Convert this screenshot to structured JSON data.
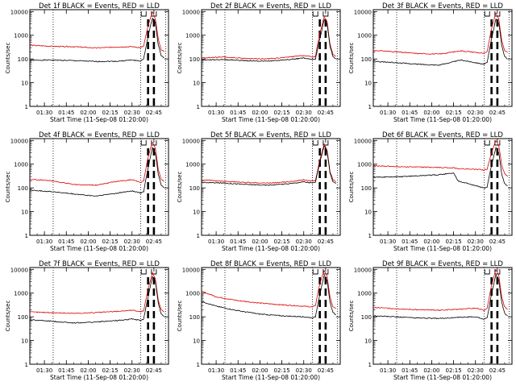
{
  "figure": {
    "ylabel": "Counts/sec",
    "xlabel": "Start Time (11-Sep-08 01:20:00)",
    "xticks": [
      "01:30",
      "01:45",
      "02:00",
      "02:15",
      "02:30",
      "02:45"
    ],
    "yticks": [
      "1",
      "10",
      "100",
      "1000",
      "10000"
    ],
    "colors": {
      "events": "#000000",
      "lld": "#dd0000",
      "background": "#ffffff"
    }
  },
  "chart_data": [
    {
      "type": "line",
      "title": "Det 1f BLACK = Events, RED = LLD",
      "xlim": [
        "01:20",
        "02:55"
      ],
      "ylim": [
        1,
        12000
      ],
      "yscale": "log",
      "series": [
        {
          "name": "Events",
          "x": [
            "01:20",
            "01:35",
            "01:50",
            "02:05",
            "02:20",
            "02:30",
            "02:36",
            "02:38",
            "02:41",
            "02:44",
            "02:46",
            "02:48",
            "02:50",
            "02:52"
          ],
          "values": [
            88,
            90,
            85,
            78,
            80,
            90,
            82,
            100,
            900,
            5500,
            3500,
            400,
            140,
            110
          ]
        },
        {
          "name": "LLD",
          "x": [
            "01:20",
            "01:35",
            "01:50",
            "02:05",
            "02:20",
            "02:30",
            "02:36",
            "02:38",
            "02:41",
            "02:44",
            "02:46",
            "02:48",
            "02:50",
            "02:52"
          ],
          "values": [
            380,
            340,
            330,
            290,
            320,
            330,
            300,
            350,
            2500,
            9500,
            5000,
            700,
            250,
            200
          ]
        }
      ]
    },
    {
      "type": "line",
      "title": "Det 2f BLACK = Events, RED = LLD",
      "xlim": [
        "01:20",
        "02:55"
      ],
      "ylim": [
        1,
        12000
      ],
      "yscale": "log",
      "series": [
        {
          "name": "Events",
          "x": [
            "01:20",
            "01:35",
            "01:50",
            "02:05",
            "02:20",
            "02:30",
            "02:36",
            "02:38",
            "02:41",
            "02:44",
            "02:46",
            "02:48",
            "02:50",
            "02:52"
          ],
          "values": [
            90,
            95,
            85,
            80,
            95,
            110,
            95,
            100,
            700,
            4500,
            3000,
            350,
            130,
            100
          ]
        },
        {
          "name": "LLD",
          "x": [
            "01:20",
            "01:35",
            "01:50",
            "02:05",
            "02:20",
            "02:30",
            "02:36",
            "02:38",
            "02:41",
            "02:44",
            "02:46",
            "02:48",
            "02:50",
            "02:52"
          ],
          "values": [
            110,
            120,
            105,
            100,
            120,
            140,
            120,
            130,
            1200,
            6000,
            3800,
            420,
            160,
            130
          ]
        }
      ]
    },
    {
      "type": "line",
      "title": "Det 3f BLACK = Events, RED = LLD",
      "xlim": [
        "01:20",
        "02:55"
      ],
      "ylim": [
        1,
        12000
      ],
      "yscale": "log",
      "series": [
        {
          "name": "Events",
          "x": [
            "01:20",
            "01:35",
            "01:50",
            "02:05",
            "02:20",
            "02:30",
            "02:36",
            "02:38",
            "02:41",
            "02:44",
            "02:46",
            "02:48",
            "02:50",
            "02:52"
          ],
          "values": [
            80,
            70,
            60,
            55,
            90,
            70,
            60,
            70,
            700,
            5000,
            3200,
            380,
            130,
            100
          ]
        },
        {
          "name": "LLD",
          "x": [
            "01:20",
            "01:35",
            "01:50",
            "02:05",
            "02:20",
            "02:30",
            "02:36",
            "02:38",
            "02:41",
            "02:44",
            "02:46",
            "02:48",
            "02:50",
            "02:52"
          ],
          "values": [
            230,
            200,
            170,
            160,
            220,
            190,
            170,
            200,
            2000,
            8500,
            4800,
            600,
            230,
            190
          ]
        }
      ]
    },
    {
      "type": "line",
      "title": "Det 4f BLACK = Events, RED = LLD",
      "xlim": [
        "01:20",
        "02:55"
      ],
      "ylim": [
        1,
        12000
      ],
      "yscale": "log",
      "series": [
        {
          "name": "Events",
          "x": [
            "01:20",
            "01:35",
            "01:50",
            "02:05",
            "02:20",
            "02:30",
            "02:36",
            "02:38",
            "02:41",
            "02:44",
            "02:46",
            "02:48",
            "02:50",
            "02:52"
          ],
          "values": [
            80,
            70,
            55,
            45,
            60,
            75,
            60,
            70,
            700,
            5000,
            3000,
            380,
            130,
            100
          ]
        },
        {
          "name": "LLD",
          "x": [
            "01:20",
            "01:35",
            "01:50",
            "02:05",
            "02:20",
            "02:30",
            "02:36",
            "02:38",
            "02:41",
            "02:44",
            "02:46",
            "02:48",
            "02:50",
            "02:52"
          ],
          "values": [
            230,
            200,
            140,
            130,
            190,
            220,
            170,
            200,
            2000,
            8500,
            4800,
            600,
            230,
            190
          ]
        }
      ]
    },
    {
      "type": "line",
      "title": "Det 5f BLACK = Events, RED = LLD",
      "xlim": [
        "01:20",
        "02:55"
      ],
      "ylim": [
        1,
        12000
      ],
      "yscale": "log",
      "series": [
        {
          "name": "Events",
          "x": [
            "01:20",
            "01:35",
            "01:50",
            "02:05",
            "02:20",
            "02:30",
            "02:36",
            "02:38",
            "02:41",
            "02:44",
            "02:46",
            "02:48",
            "02:50",
            "02:52"
          ],
          "values": [
            170,
            160,
            140,
            130,
            150,
            180,
            160,
            170,
            1200,
            6000,
            3500,
            420,
            180,
            150
          ]
        },
        {
          "name": "LLD",
          "x": [
            "01:20",
            "01:35",
            "01:50",
            "02:05",
            "02:20",
            "02:30",
            "02:36",
            "02:38",
            "02:41",
            "02:44",
            "02:46",
            "02:48",
            "02:50",
            "02:52"
          ],
          "values": [
            220,
            190,
            170,
            160,
            180,
            220,
            190,
            200,
            1500,
            7000,
            4000,
            500,
            220,
            180
          ]
        }
      ]
    },
    {
      "type": "line",
      "title": "Det 6f BLACK = Events, RED = LLD",
      "xlim": [
        "01:20",
        "02:55"
      ],
      "ylim": [
        1,
        12000
      ],
      "yscale": "log",
      "series": [
        {
          "name": "Events",
          "x": [
            "01:20",
            "01:35",
            "01:50",
            "02:05",
            "02:15",
            "02:18",
            "02:25",
            "02:33",
            "02:36",
            "02:38",
            "02:41",
            "02:44",
            "02:46",
            "02:48",
            "02:50",
            "02:52"
          ],
          "values": [
            280,
            290,
            320,
            360,
            420,
            200,
            150,
            110,
            95,
            110,
            900,
            5000,
            3000,
            380,
            150,
            120
          ]
        },
        {
          "name": "LLD",
          "x": [
            "01:20",
            "01:35",
            "01:50",
            "02:05",
            "02:15",
            "02:18",
            "02:25",
            "02:33",
            "02:36",
            "02:38",
            "02:41",
            "02:44",
            "02:46",
            "02:48",
            "02:50",
            "02:52"
          ],
          "values": [
            850,
            800,
            760,
            720,
            700,
            650,
            620,
            600,
            560,
            620,
            3000,
            10000,
            6000,
            900,
            400,
            300
          ]
        }
      ]
    },
    {
      "type": "line",
      "title": "Det 7f BLACK = Events, RED = LLD",
      "xlim": [
        "01:20",
        "02:55"
      ],
      "ylim": [
        1,
        12000
      ],
      "yscale": "log",
      "series": [
        {
          "name": "Events",
          "x": [
            "01:20",
            "01:35",
            "01:50",
            "02:05",
            "02:20",
            "02:30",
            "02:36",
            "02:38",
            "02:41",
            "02:44",
            "02:46",
            "02:48",
            "02:50",
            "02:52"
          ],
          "values": [
            75,
            65,
            55,
            60,
            70,
            80,
            70,
            80,
            700,
            5000,
            3200,
            380,
            130,
            100
          ]
        },
        {
          "name": "LLD",
          "x": [
            "01:20",
            "01:35",
            "01:50",
            "02:05",
            "02:20",
            "02:30",
            "02:36",
            "02:38",
            "02:41",
            "02:44",
            "02:46",
            "02:48",
            "02:50",
            "02:52"
          ],
          "values": [
            160,
            150,
            140,
            150,
            170,
            190,
            165,
            180,
            1500,
            7000,
            4000,
            500,
            200,
            160
          ]
        }
      ]
    },
    {
      "type": "line",
      "title": "Det 8f BLACK = Events, RED = LLD",
      "xlim": [
        "01:20",
        "02:55"
      ],
      "ylim": [
        1,
        12000
      ],
      "yscale": "log",
      "series": [
        {
          "name": "Events",
          "x": [
            "01:20",
            "01:30",
            "01:45",
            "02:00",
            "02:15",
            "02:30",
            "02:36",
            "02:38",
            "02:41",
            "02:44",
            "02:46",
            "02:48",
            "02:50",
            "02:52"
          ],
          "values": [
            450,
            280,
            180,
            130,
            110,
            100,
            90,
            100,
            900,
            5500,
            3500,
            420,
            150,
            120
          ]
        },
        {
          "name": "LLD",
          "x": [
            "01:20",
            "01:30",
            "01:45",
            "02:00",
            "02:15",
            "02:30",
            "02:36",
            "02:38",
            "02:41",
            "02:44",
            "02:46",
            "02:48",
            "02:50",
            "02:52"
          ],
          "values": [
            1200,
            700,
            480,
            380,
            320,
            280,
            260,
            300,
            2500,
            9000,
            5000,
            700,
            260,
            220
          ]
        }
      ]
    },
    {
      "type": "line",
      "title": "Det 9f BLACK = Events, RED = LLD",
      "xlim": [
        "01:20",
        "02:55"
      ],
      "ylim": [
        1,
        12000
      ],
      "yscale": "log",
      "series": [
        {
          "name": "Events",
          "x": [
            "01:20",
            "01:35",
            "01:50",
            "02:05",
            "02:20",
            "02:30",
            "02:36",
            "02:38",
            "02:41",
            "02:44",
            "02:46",
            "02:48",
            "02:50",
            "02:52"
          ],
          "values": [
            110,
            100,
            90,
            85,
            95,
            100,
            80,
            90,
            900,
            6000,
            3500,
            400,
            140,
            110
          ]
        },
        {
          "name": "LLD",
          "x": [
            "01:20",
            "01:35",
            "01:50",
            "02:05",
            "02:20",
            "02:30",
            "02:36",
            "02:38",
            "02:41",
            "02:44",
            "02:46",
            "02:48",
            "02:50",
            "02:52"
          ],
          "values": [
            250,
            220,
            200,
            190,
            210,
            230,
            190,
            220,
            2200,
            9500,
            5500,
            700,
            260,
            210
          ]
        }
      ]
    }
  ]
}
